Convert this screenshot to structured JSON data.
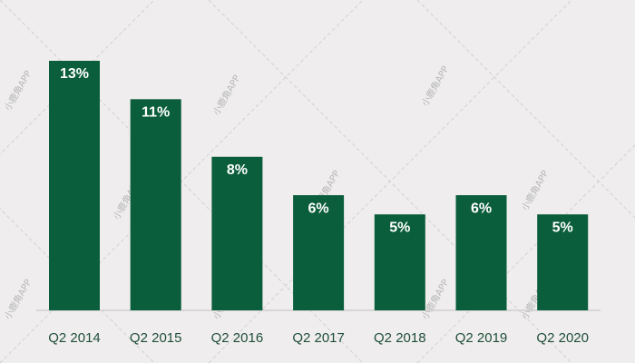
{
  "chart_data": {
    "type": "bar",
    "categories": [
      "Q2 2014",
      "Q2 2015",
      "Q2 2016",
      "Q2 2017",
      "Q2 2018",
      "Q2 2019",
      "Q2 2020"
    ],
    "values": [
      13,
      11,
      8,
      6,
      5,
      6,
      5
    ],
    "value_labels": [
      "13%",
      "11%",
      "8%",
      "6%",
      "5%",
      "6%",
      "5%"
    ],
    "color": "#0b5e3b",
    "ylim": [
      0,
      13
    ],
    "watermark": "小鹿角APP"
  }
}
